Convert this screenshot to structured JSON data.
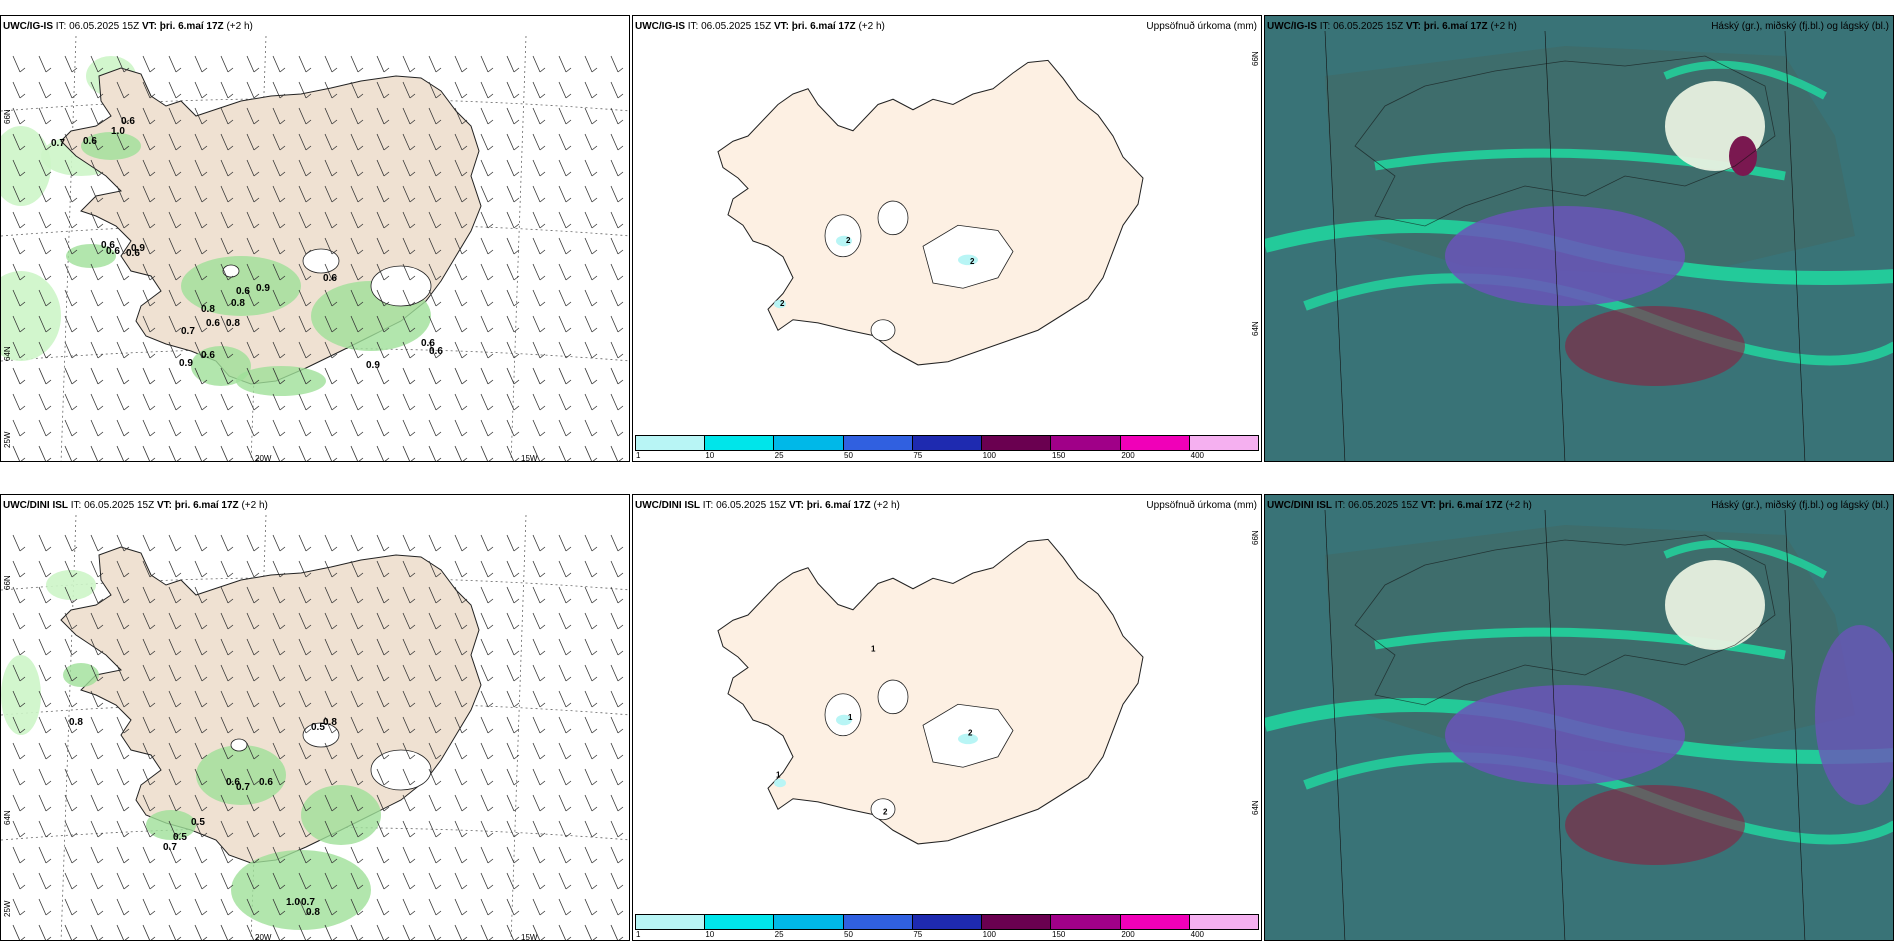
{
  "rows": [
    {
      "model": "UWC/IG-IS",
      "it_label": "IT:",
      "it_value": "06.05.2025 15Z",
      "vt_label": "VT:",
      "vt_value": "þri. 6.maí 17Z",
      "lead": "(+2 h)",
      "precip_title": "Uppsöfnuð úrkoma (mm)",
      "cloud_title": "Háský (gr.), miðský (fj.bl.) og lágský (bl.)",
      "wind_labels": [
        "0.7",
        "0.6",
        "1.0",
        "0.6",
        "0.6",
        "0.6",
        "0.6",
        "0.9",
        "0.7",
        "0.8",
        "0.6",
        "0.8",
        "0.8",
        "0.6",
        "0.9",
        "0.9",
        "0.6",
        "0.6",
        "0.6",
        "0.6",
        "0.9"
      ],
      "precip_labels": [
        "2",
        "2",
        "2"
      ]
    },
    {
      "model": "UWC/DINI ISL",
      "it_label": "IT:",
      "it_value": "06.05.2025 15Z",
      "vt_label": "VT:",
      "vt_value": "þri. 6.maí 17Z",
      "lead": "(+2 h)",
      "precip_title": "Uppsöfnuð úrkoma (mm)",
      "cloud_title": "Háský (gr.), miðský (fj.bl.) og lágský (bl.)",
      "wind_labels": [
        "0.8",
        "0.6",
        "0.7",
        "0.6",
        "0.5",
        "0.5",
        "0.5",
        "0.8",
        "0.7",
        "1.0",
        "0.7",
        "0.8"
      ],
      "precip_labels": [
        "1",
        "1",
        "1",
        "2",
        "2"
      ]
    }
  ],
  "axes": {
    "lat_66": "66N",
    "lat_64": "64N",
    "lon_25": "25W",
    "lon_20": "20W",
    "lon_15": "15W"
  },
  "colorbar": {
    "ticks": [
      "1",
      "10",
      "25",
      "50",
      "75",
      "100",
      "150",
      "200",
      "400"
    ],
    "colors": [
      "#b8f5f5",
      "#00e5ea",
      "#00b8e8",
      "#3060e0",
      "#1e2ab0",
      "#6a0050",
      "#a00088",
      "#f000b8",
      "#f5b0f0"
    ]
  },
  "colors": {
    "land": "#efe1d2",
    "land_precip": "#fdf0e3",
    "sea_cloud": "#3f7b7c",
    "green_cloud": "#20d9a0",
    "purple_cloud": "#6a55b8",
    "red_cloud": "#8b2040"
  }
}
